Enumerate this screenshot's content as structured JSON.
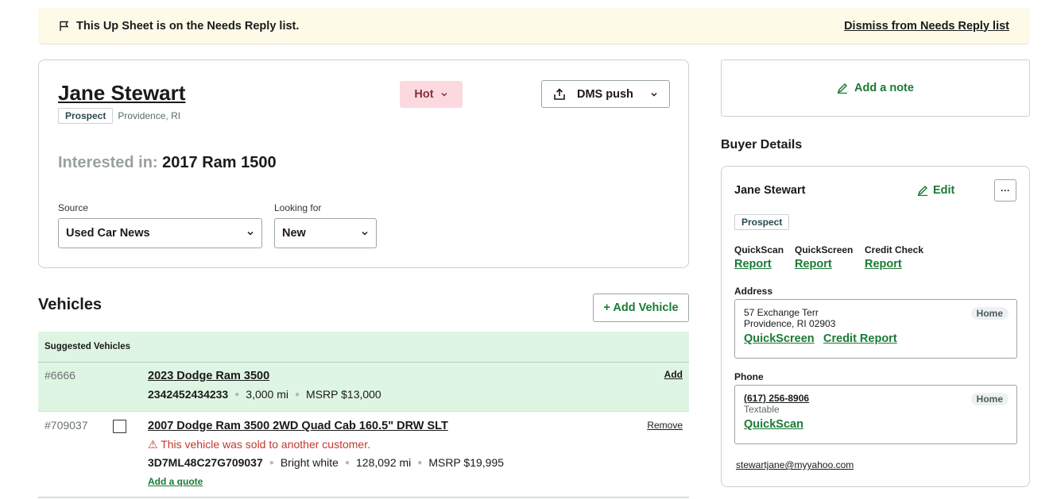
{
  "banner": {
    "message": "This Up Sheet is on the Needs Reply list.",
    "dismiss_label": "Dismiss from Needs Reply list"
  },
  "lead": {
    "name": "Jane Stewart",
    "status_badge": "Prospect",
    "location": "Providence, RI",
    "temperature": "Hot",
    "dms_label": "DMS push",
    "interested_label": "Interested in:",
    "interested_vehicle": "2017 Ram 1500",
    "source_label": "Source",
    "source_value": "Used Car News",
    "looking_for_label": "Looking for",
    "looking_for_value": "New"
  },
  "vehicles": {
    "title": "Vehicles",
    "add_label": "+ Add Vehicle",
    "suggested_header": "Suggested Vehicles",
    "suggested": [
      {
        "stock": "#6666",
        "title": "2023 Dodge Ram 3500",
        "vin": "2342452434233",
        "mileage": "3,000 mi",
        "msrp": "MSRP $13,000",
        "action": "Add"
      }
    ],
    "list": [
      {
        "stock": "#709037",
        "title": "2007 Dodge Ram 3500 2WD Quad Cab 160.5\" DRW SLT",
        "warning": "⚠ This vehicle was sold to another customer.",
        "vin": "3D7ML48C27G709037",
        "color": "Bright white",
        "mileage": "128,092 mi",
        "msrp": "MSRP $19,995",
        "action": "Remove",
        "quote_label": "Add a quote"
      }
    ]
  },
  "note": {
    "label": "Add a note"
  },
  "buyer": {
    "section_title": "Buyer Details",
    "name": "Jane Stewart",
    "edit_label": "Edit",
    "more_label": "···",
    "badge": "Prospect",
    "reports": [
      {
        "title": "QuickScan",
        "link": "Report"
      },
      {
        "title": "QuickScreen",
        "link": "Report"
      },
      {
        "title": "Credit Check",
        "link": "Report"
      }
    ],
    "address_label": "Address",
    "address_line1": "57 Exchange Terr",
    "address_line2": "Providence, RI 02903",
    "address_tag": "Home",
    "address_links": [
      "QuickScreen",
      "Credit Report"
    ],
    "phone_label": "Phone",
    "phone_number": "(617) 256-8906",
    "phone_sub": "Textable",
    "phone_tag": "Home",
    "phone_link": "QuickScan",
    "email": "stewartjane@myyahoo.com"
  }
}
